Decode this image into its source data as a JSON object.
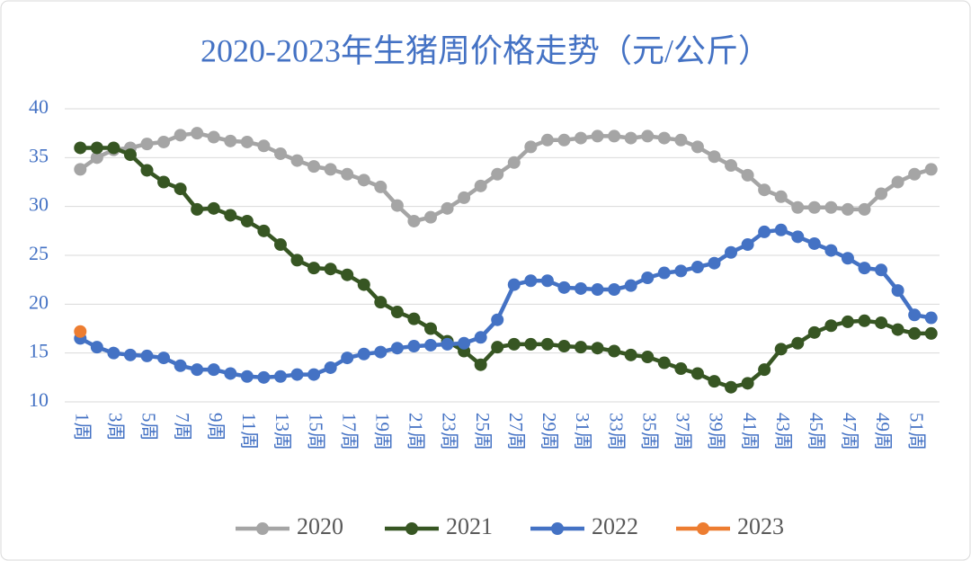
{
  "chart_data": {
    "type": "line",
    "title": "2020-2023年生猪周价格走势（元/公斤）",
    "categories": [
      "1周",
      null,
      "3周",
      null,
      "5周",
      null,
      "7周",
      null,
      "9周",
      null,
      "11周",
      null,
      "13周",
      null,
      "15周",
      null,
      "17周",
      null,
      "19周",
      null,
      "21周",
      null,
      "23周",
      null,
      "25周",
      null,
      "27周",
      null,
      "29周",
      null,
      "31周",
      null,
      "33周",
      null,
      "35周",
      null,
      "37周",
      null,
      "39周",
      null,
      "41周",
      null,
      "43周",
      null,
      "45周",
      null,
      "47周",
      null,
      "49周",
      null,
      "51周",
      null
    ],
    "series": [
      {
        "name": "2020",
        "color": "#a5a5a5",
        "values": [
          33.8,
          35.0,
          35.8,
          36.0,
          36.4,
          36.6,
          37.3,
          37.5,
          37.1,
          36.7,
          36.6,
          36.2,
          35.4,
          34.7,
          34.1,
          33.8,
          33.3,
          32.7,
          32.0,
          30.1,
          28.5,
          28.9,
          29.8,
          30.9,
          32.1,
          33.3,
          34.5,
          36.1,
          36.8,
          36.8,
          37.0,
          37.2,
          37.2,
          37.0,
          37.2,
          37.0,
          36.8,
          36.1,
          35.1,
          34.2,
          33.2,
          31.7,
          31.0,
          29.9,
          29.9,
          29.9,
          29.7,
          29.7,
          31.3,
          32.5,
          33.3,
          33.8
        ]
      },
      {
        "name": "2021",
        "color": "#375623",
        "values": [
          36.0,
          36.0,
          36.0,
          35.3,
          33.7,
          32.5,
          31.8,
          29.7,
          29.8,
          29.1,
          28.5,
          27.5,
          26.1,
          24.5,
          23.7,
          23.6,
          23.0,
          22.0,
          20.2,
          19.2,
          18.5,
          17.5,
          16.2,
          15.2,
          13.8,
          15.6,
          15.9,
          15.9,
          15.9,
          15.7,
          15.6,
          15.5,
          15.2,
          14.8,
          14.6,
          14.0,
          13.4,
          12.9,
          12.1,
          11.5,
          11.9,
          13.3,
          15.4,
          16.0,
          17.1,
          17.8,
          18.2,
          18.3,
          18.1,
          17.4,
          17.0,
          17.0
        ]
      },
      {
        "name": "2022",
        "color": "#4472c4",
        "values": [
          16.5,
          15.6,
          15.0,
          14.8,
          14.7,
          14.5,
          13.7,
          13.3,
          13.3,
          12.9,
          12.6,
          12.5,
          12.6,
          12.8,
          12.8,
          13.5,
          14.5,
          14.9,
          15.1,
          15.5,
          15.7,
          15.8,
          15.9,
          16.0,
          16.6,
          18.4,
          22.0,
          22.4,
          22.4,
          21.7,
          21.6,
          21.5,
          21.5,
          21.9,
          22.7,
          23.2,
          23.4,
          23.8,
          24.2,
          25.3,
          26.1,
          27.4,
          27.6,
          26.9,
          26.2,
          25.5,
          24.7,
          23.7,
          23.5,
          21.4,
          18.9,
          18.6
        ]
      },
      {
        "name": "2023",
        "color": "#ed7d31",
        "values": [
          17.2,
          null,
          null,
          null,
          null,
          null,
          null,
          null,
          null,
          null,
          null,
          null,
          null,
          null,
          null,
          null,
          null,
          null,
          null,
          null,
          null,
          null,
          null,
          null,
          null,
          null,
          null,
          null,
          null,
          null,
          null,
          null,
          null,
          null,
          null,
          null,
          null,
          null,
          null,
          null,
          null,
          null,
          null,
          null,
          null,
          null,
          null,
          null,
          null,
          null,
          null,
          null
        ]
      }
    ],
    "ylim": [
      10,
      40
    ],
    "yticks": [
      10,
      15,
      20,
      25,
      30,
      35,
      40
    ],
    "grid": true,
    "legend": "bottom"
  }
}
